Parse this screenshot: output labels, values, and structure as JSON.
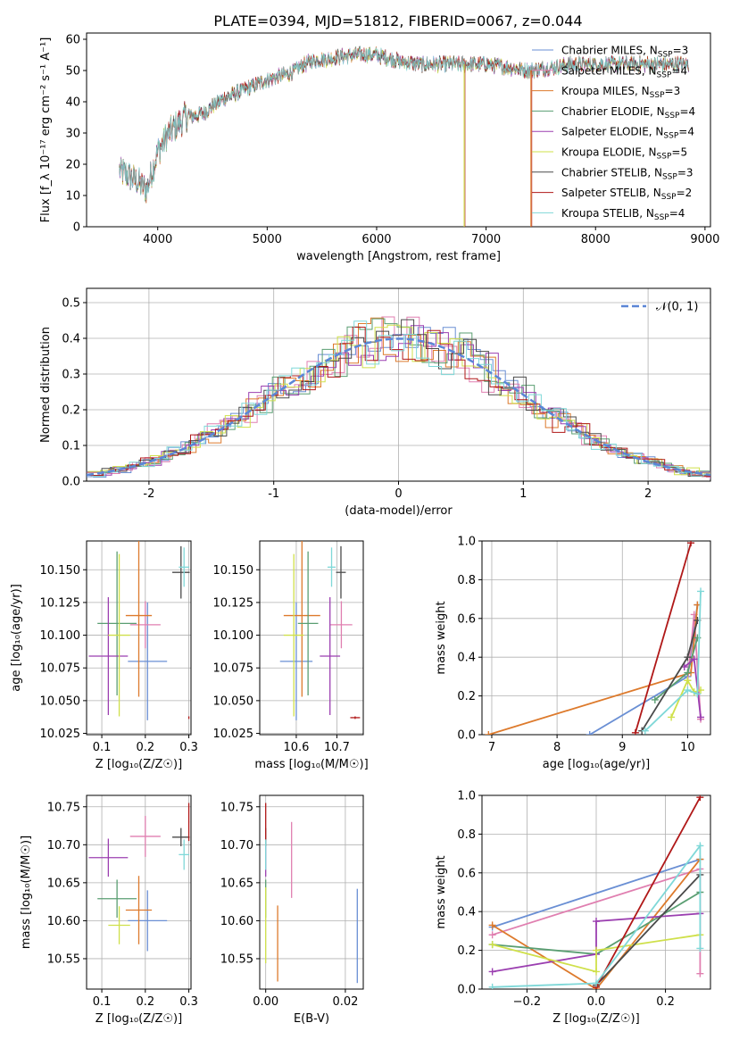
{
  "figure": {
    "title": "PLATE=0394, MJD=51812, FIBERID=0067, z=0.044"
  },
  "chart_data": [
    {
      "id": "spectrum",
      "type": "line",
      "xlabel": "wavelength [Angstrom, rest frame]",
      "ylabel": "Flux [f_λ 10⁻¹⁷ erg cm⁻² s⁻¹ A⁻¹]",
      "xlim": [
        3350,
        9050
      ],
      "ylim": [
        0,
        62
      ],
      "xticks": [
        4000,
        5000,
        6000,
        7000,
        8000,
        9000
      ],
      "yticks": [
        0,
        10,
        20,
        30,
        40,
        50,
        60
      ],
      "grid": false,
      "legend_position": "right",
      "continuum_x": [
        3650,
        3750,
        3900,
        4000,
        4100,
        4250,
        4400,
        4600,
        4800,
        5000,
        5200,
        5400,
        5600,
        5800,
        6000,
        6200,
        6400,
        6600,
        6800,
        7000,
        7200,
        7400,
        7600,
        7800,
        8000,
        8200,
        8400,
        8600,
        8800
      ],
      "continuum_y": [
        18,
        16,
        12,
        24,
        30,
        35,
        36,
        41,
        44,
        47,
        49,
        53,
        54,
        55,
        55,
        53,
        52,
        52,
        52,
        52,
        51,
        50,
        51,
        52,
        52,
        52,
        52,
        52,
        52
      ],
      "dips": [
        {
          "x": 6800,
          "min": 0
        },
        {
          "x": 7410,
          "min": 0
        }
      ],
      "series": [
        {
          "name": "Chabrier MILES, N_SSP=3",
          "label_main": "Chabrier MILES, N",
          "label_sub": "SSP",
          "label_tail": "=3",
          "color": "#6a8fd4"
        },
        {
          "name": "Salpeter MILES, N_SSP=4",
          "label_main": "Salpeter MILES, N",
          "label_sub": "SSP",
          "label_tail": "=4",
          "color": "#e07fb0"
        },
        {
          "name": "Kroupa MILES, N_SSP=3",
          "label_main": "Kroupa MILES, N",
          "label_sub": "SSP",
          "label_tail": "=3",
          "color": "#dd7a2c"
        },
        {
          "name": "Chabrier ELODIE, N_SSP=4",
          "label_main": "Chabrier ELODIE, N",
          "label_sub": "SSP",
          "label_tail": "=4",
          "color": "#5a9e72"
        },
        {
          "name": "Salpeter ELODIE, N_SSP=4",
          "label_main": "Salpeter ELODIE, N",
          "label_sub": "SSP",
          "label_tail": "=4",
          "color": "#9b3fb0"
        },
        {
          "name": "Kroupa ELODIE, N_SSP=5",
          "label_main": "Kroupa ELODIE, N",
          "label_sub": "SSP",
          "label_tail": "=5",
          "color": "#cfe04a"
        },
        {
          "name": "Chabrier STELIB, N_SSP=3",
          "label_main": "Chabrier STELIB, N",
          "label_sub": "SSP",
          "label_tail": "=3",
          "color": "#4a4a4a"
        },
        {
          "name": "Salpeter STELIB, N_SSP=2",
          "label_main": "Salpeter STELIB, N",
          "label_sub": "SSP",
          "label_tail": "=2",
          "color": "#b01818"
        },
        {
          "name": "Kroupa STELIB, N_SSP=4",
          "label_main": "Kroupa STELIB, N",
          "label_sub": "SSP",
          "label_tail": "=4",
          "color": "#7fd8d8"
        }
      ]
    },
    {
      "id": "residuals",
      "type": "line",
      "xlabel": "(data-model)/error",
      "ylabel": "Normed distribution",
      "xlim": [
        -2.5,
        2.5
      ],
      "ylim": [
        0,
        0.54
      ],
      "xticks": [
        -2,
        -1,
        0,
        1,
        2
      ],
      "yticks": [
        0.0,
        0.1,
        0.2,
        0.3,
        0.4,
        0.5
      ],
      "ytick_labels": [
        "0.0",
        "0.1",
        "0.2",
        "0.3",
        "0.4",
        "0.5"
      ],
      "grid": true,
      "legend_position": "upper right",
      "gaussian": {
        "name": "N(0,1)",
        "label": "𝒩(0, 1)",
        "mean": 0,
        "sigma": 1,
        "color": "#5b86d6"
      },
      "bin_width": 0.1
    },
    {
      "id": "age_vs_Z",
      "type": "scatter",
      "xlabel": "Z [log₁₀(Z/Z☉)]",
      "ylabel": "age  [log₁₀(age/yr)]",
      "xlim": [
        0.065,
        0.305
      ],
      "ylim": [
        10.024,
        10.172
      ],
      "xticks": [
        0.1,
        0.2,
        0.3
      ],
      "yticks": [
        10.025,
        10.05,
        10.075,
        10.1,
        10.125,
        10.15
      ],
      "grid": true,
      "points": [
        {
          "x": 0.205,
          "xerr": 0.045,
          "y": 10.08,
          "yerr": 0.045
        },
        {
          "x": 0.2,
          "xerr": 0.035,
          "y": 10.108,
          "yerr": 0.018
        },
        {
          "x": 0.185,
          "xerr": 0.03,
          "y": 10.115,
          "yerr": 0.062
        },
        {
          "x": 0.135,
          "xerr": 0.045,
          "y": 10.109,
          "yerr": 0.055
        },
        {
          "x": 0.115,
          "xerr": 0.045,
          "y": 10.084,
          "yerr": 0.045
        },
        {
          "x": 0.14,
          "xerr": 0.025,
          "y": 10.1,
          "yerr": 0.062
        },
        {
          "x": 0.282,
          "xerr": 0.02,
          "y": 10.148,
          "yerr": 0.02
        },
        {
          "x": 0.3,
          "xerr": 0.001,
          "y": 10.037,
          "yerr": 0.001
        },
        {
          "x": 0.289,
          "xerr": 0.012,
          "y": 10.152,
          "yerr": 0.015
        }
      ]
    },
    {
      "id": "age_vs_mass",
      "type": "scatter",
      "xlabel": "mass [log₁₀(M/M☉)]",
      "ylabel": "",
      "xlim": [
        10.51,
        10.765
      ],
      "ylim": [
        10.024,
        10.172
      ],
      "xticks": [
        10.6,
        10.7
      ],
      "yticks": [
        10.025,
        10.05,
        10.075,
        10.1,
        10.125,
        10.15
      ],
      "grid": true,
      "points": [
        {
          "x": 10.6,
          "xerr": 0.04,
          "y": 10.08,
          "yerr": 0.045
        },
        {
          "x": 10.711,
          "xerr": 0.027,
          "y": 10.108,
          "yerr": 0.018
        },
        {
          "x": 10.614,
          "xerr": 0.045,
          "y": 10.115,
          "yerr": 0.062
        },
        {
          "x": 10.629,
          "xerr": 0.025,
          "y": 10.109,
          "yerr": 0.055
        },
        {
          "x": 10.683,
          "xerr": 0.025,
          "y": 10.084,
          "yerr": 0.045
        },
        {
          "x": 10.594,
          "xerr": 0.025,
          "y": 10.1,
          "yerr": 0.062
        },
        {
          "x": 10.71,
          "xerr": 0.012,
          "y": 10.148,
          "yerr": 0.02
        },
        {
          "x": 10.745,
          "xerr": 0.012,
          "y": 10.037,
          "yerr": 0.001
        },
        {
          "x": 10.687,
          "xerr": 0.01,
          "y": 10.152,
          "yerr": 0.015
        }
      ]
    },
    {
      "id": "weight_vs_age",
      "type": "line",
      "xlabel": "age  [log₁₀(age/yr)]",
      "ylabel": "mass weight",
      "xlim": [
        6.85,
        10.35
      ],
      "ylim": [
        0,
        1
      ],
      "xticks": [
        7,
        8,
        9,
        10
      ],
      "yticks": [
        0.0,
        0.2,
        0.4,
        0.6,
        0.8,
        1.0
      ],
      "ytick_labels": [
        "0.0",
        "0.2",
        "0.4",
        "0.6",
        "0.8",
        "1.0"
      ],
      "grid": true,
      "series": [
        {
          "name": "Chabrier MILES",
          "x": [
            8.5,
            10.0,
            10.15
          ],
          "y": [
            0.0,
            0.3,
            0.67
          ]
        },
        {
          "name": "Salpeter MILES",
          "x": [
            10.0,
            10.1,
            10.2
          ],
          "y": [
            0.28,
            0.62,
            0.08
          ]
        },
        {
          "name": "Kroupa MILES",
          "x": [
            6.95,
            10.05,
            10.15
          ],
          "y": [
            0.0,
            0.32,
            0.67
          ]
        },
        {
          "name": "Chabrier ELODIE",
          "x": [
            9.5,
            10.0,
            10.15
          ],
          "y": [
            0.18,
            0.32,
            0.5
          ]
        },
        {
          "name": "Salpeter ELODIE",
          "x": [
            9.95,
            10.1,
            10.2
          ],
          "y": [
            0.35,
            0.39,
            0.09
          ]
        },
        {
          "name": "Kroupa ELODIE",
          "x": [
            9.75,
            10.0,
            10.1,
            10.2
          ],
          "y": [
            0.09,
            0.28,
            0.22,
            0.23
          ]
        },
        {
          "name": "Chabrier STELIB",
          "x": [
            9.3,
            10.0,
            10.15
          ],
          "y": [
            0.02,
            0.4,
            0.59
          ]
        },
        {
          "name": "Salpeter STELIB",
          "x": [
            9.2,
            10.05
          ],
          "y": [
            0.01,
            0.99
          ]
        },
        {
          "name": "Kroupa STELIB",
          "x": [
            9.35,
            10.0,
            10.15,
            10.2
          ],
          "y": [
            0.02,
            0.23,
            0.21,
            0.74
          ]
        }
      ]
    },
    {
      "id": "mass_vs_Z",
      "type": "scatter",
      "xlabel": "Z [log₁₀(Z/Z☉)]",
      "ylabel": "mass [log₁₀(M/M☉)]",
      "xlim": [
        0.065,
        0.305
      ],
      "ylim": [
        10.51,
        10.765
      ],
      "xticks": [
        0.1,
        0.2,
        0.3
      ],
      "yticks": [
        10.55,
        10.6,
        10.65,
        10.7,
        10.75
      ],
      "grid": true,
      "points": [
        {
          "x": 0.205,
          "xerr": 0.045,
          "y": 10.6,
          "yerr": 0.04
        },
        {
          "x": 0.2,
          "xerr": 0.035,
          "y": 10.711,
          "yerr": 0.027
        },
        {
          "x": 0.185,
          "xerr": 0.03,
          "y": 10.614,
          "yerr": 0.045
        },
        {
          "x": 0.135,
          "xerr": 0.045,
          "y": 10.629,
          "yerr": 0.025
        },
        {
          "x": 0.115,
          "xerr": 0.045,
          "y": 10.683,
          "yerr": 0.025
        },
        {
          "x": 0.14,
          "xerr": 0.025,
          "y": 10.594,
          "yerr": 0.025
        },
        {
          "x": 0.282,
          "xerr": 0.02,
          "y": 10.71,
          "yerr": 0.012
        },
        {
          "x": 0.3,
          "xerr": 0.001,
          "y": 10.73,
          "yerr": 0.025
        },
        {
          "x": 0.289,
          "xerr": 0.012,
          "y": 10.687,
          "yerr": 0.02
        }
      ]
    },
    {
      "id": "mass_vs_EBV",
      "type": "scatter",
      "xlabel": "E(B-V)",
      "ylabel": "",
      "xlim": [
        -0.0015,
        0.0245
      ],
      "ylim": [
        10.51,
        10.765
      ],
      "xticks": [
        0.0,
        0.02
      ],
      "xtick_labels": [
        "0.00",
        "0.02"
      ],
      "yticks": [
        10.55,
        10.6,
        10.65,
        10.7,
        10.75
      ],
      "grid": true,
      "points": [
        {
          "x": 0.023,
          "xerr": 0,
          "y": 10.58,
          "yerr": 0.062
        },
        {
          "x": 0.0065,
          "xerr": 0,
          "y": 10.68,
          "yerr": 0.05
        },
        {
          "x": 0.003,
          "xerr": 0,
          "y": 10.57,
          "yerr": 0.05
        },
        {
          "x": 0.0,
          "xerr": 0,
          "y": 10.629,
          "yerr": 0.025
        },
        {
          "x": 0.0,
          "xerr": 0,
          "y": 10.683,
          "yerr": 0.025
        },
        {
          "x": 0.0,
          "xerr": 0,
          "y": 10.594,
          "yerr": 0.05
        },
        {
          "x": 0.0,
          "xerr": 0,
          "y": 10.71,
          "yerr": 0.012
        },
        {
          "x": 0.0,
          "xerr": 0,
          "y": 10.73,
          "yerr": 0.025
        },
        {
          "x": 0.0,
          "xerr": 0,
          "y": 10.687,
          "yerr": 0.02
        }
      ]
    },
    {
      "id": "weight_vs_Z",
      "type": "line",
      "xlabel": "Z [log₁₀(Z/Z☉)]",
      "ylabel": "mass weight",
      "xlim": [
        -0.33,
        0.33
      ],
      "ylim": [
        0,
        1
      ],
      "xticks": [
        -0.2,
        0.0,
        0.2
      ],
      "xtick_labels": [
        "−0.2",
        "0.0",
        "0.2"
      ],
      "yticks": [
        0.0,
        0.2,
        0.4,
        0.6,
        0.8,
        1.0
      ],
      "ytick_labels": [
        "0.0",
        "0.2",
        "0.4",
        "0.6",
        "0.8",
        "1.0"
      ],
      "grid": true,
      "series": [
        {
          "name": "Chabrier MILES",
          "x": [
            -0.3,
            0.3
          ],
          "y": [
            0.32,
            0.67
          ]
        },
        {
          "name": "Salpeter MILES",
          "x": [
            -0.3,
            0.3,
            0.3
          ],
          "y": [
            0.28,
            0.62,
            0.08
          ]
        },
        {
          "name": "Kroupa MILES",
          "x": [
            -0.3,
            0.0,
            0.3
          ],
          "y": [
            0.33,
            0.0,
            0.67
          ]
        },
        {
          "name": "Chabrier ELODIE",
          "x": [
            -0.3,
            0.0,
            0.3
          ],
          "y": [
            0.23,
            0.18,
            0.5
          ]
        },
        {
          "name": "Salpeter ELODIE",
          "x": [
            -0.3,
            0.0,
            0.0,
            0.3
          ],
          "y": [
            0.09,
            0.18,
            0.35,
            0.39
          ]
        },
        {
          "name": "Kroupa ELODIE",
          "x": [
            -0.3,
            0.0,
            0.0,
            0.3
          ],
          "y": [
            0.23,
            0.09,
            0.2,
            0.28
          ]
        },
        {
          "name": "Chabrier STELIB",
          "x": [
            0.0,
            0.3
          ],
          "y": [
            0.02,
            0.59
          ]
        },
        {
          "name": "Salpeter STELIB",
          "x": [
            0.0,
            0.3
          ],
          "y": [
            0.01,
            0.99
          ]
        },
        {
          "name": "Kroupa STELIB",
          "x": [
            -0.3,
            0.0,
            0.3,
            0.3
          ],
          "y": [
            0.01,
            0.03,
            0.74,
            0.21
          ]
        }
      ]
    }
  ]
}
